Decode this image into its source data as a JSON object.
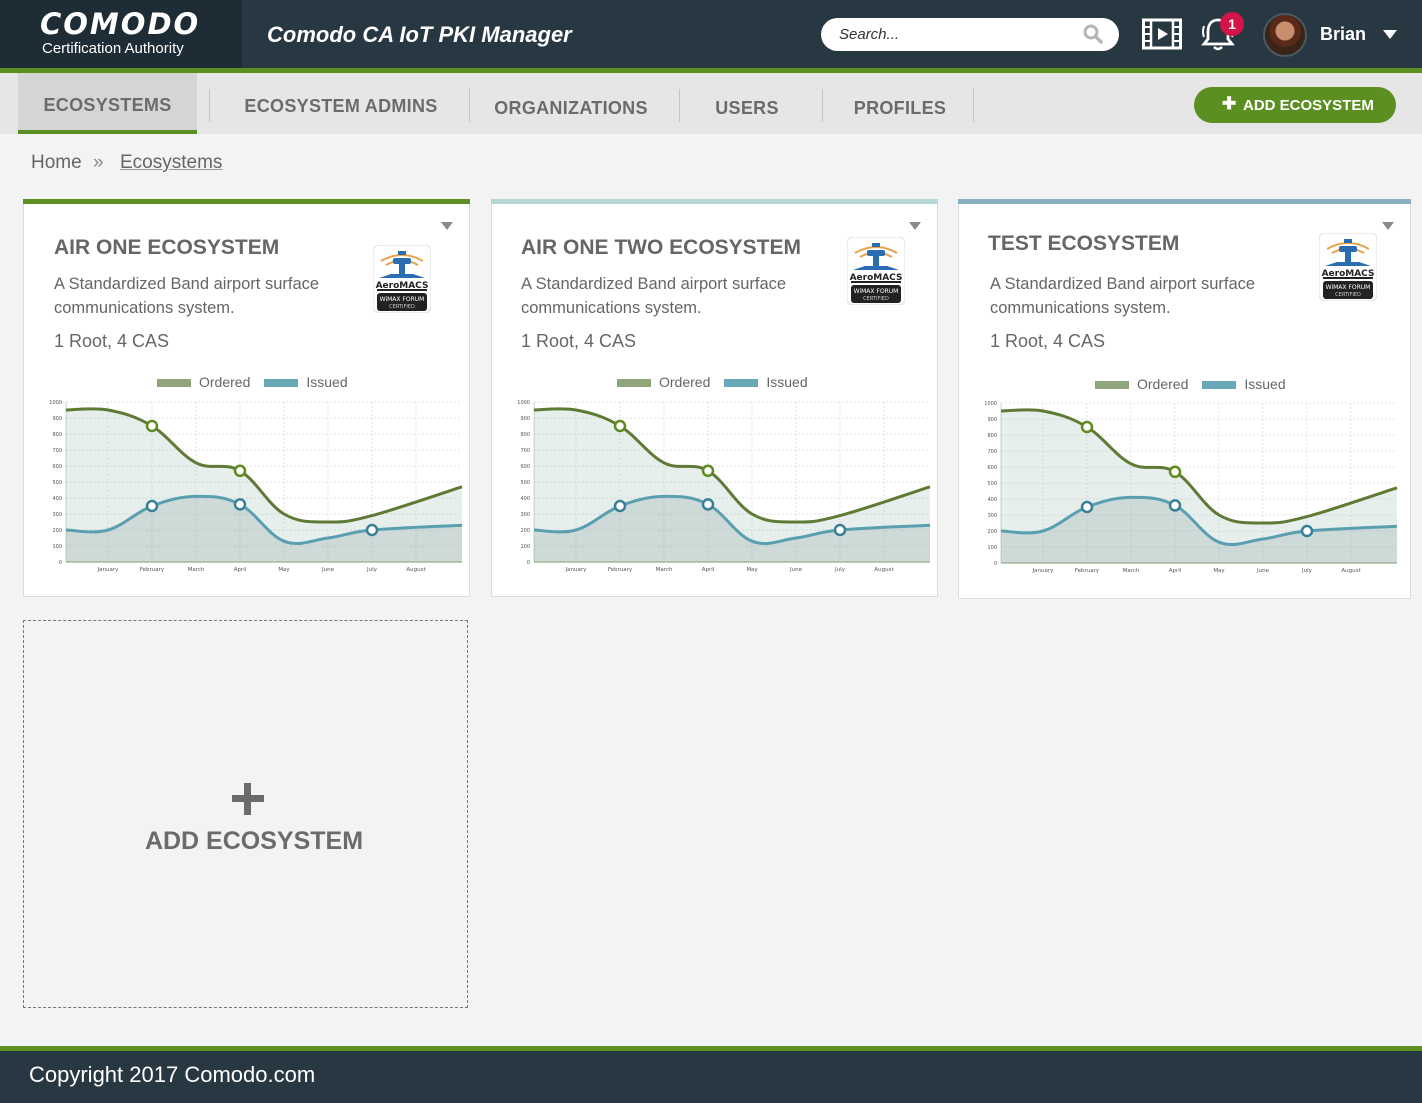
{
  "header": {
    "brand": "COMODO",
    "brand_sub": "Certification Authority",
    "app_title": "Comodo CA IoT PKI Manager",
    "search_placeholder": "Search...",
    "notification_count": "1",
    "user_name": "Brian"
  },
  "nav": {
    "tabs": [
      {
        "label": "ECOSYSTEMS",
        "active": true
      },
      {
        "label": "ECOSYSTEM ADMINS",
        "active": false
      },
      {
        "label": "ORGANIZATIONS",
        "active": false
      },
      {
        "label": "USERS",
        "active": false
      },
      {
        "label": "PROFILES",
        "active": false
      }
    ],
    "add_button": "ADD ECOSYSTEM"
  },
  "breadcrumb": {
    "home": "Home",
    "separator": "»",
    "current": "Ecosystems"
  },
  "cards": [
    {
      "title": "AIR ONE ECOSYSTEM",
      "description": "A Standardized Band airport surface communications system.",
      "stats": "1 Root, 4 CAS",
      "accent": "#5b8f22"
    },
    {
      "title": "AIR ONE TWO ECOSYSTEM",
      "description": "A Standardized Band airport surface communications system.",
      "stats": "1 Root, 4 CAS",
      "accent": "#b6d8d4"
    },
    {
      "title": "TEST ECOSYSTEM",
      "description": "A Standardized Band airport surface communications system.",
      "stats": "1 Root, 4 CAS",
      "accent": "#8aaec3"
    }
  ],
  "badge": {
    "line1": "AeroMACS",
    "line2": "WiMAX FORUM",
    "line3": "CERTIFIED"
  },
  "add_card": {
    "label": "ADD ECOSYSTEM"
  },
  "chart_data": {
    "type": "line",
    "categories": [
      "January",
      "February",
      "March",
      "April",
      "May",
      "June",
      "July",
      "August"
    ],
    "series": [
      {
        "name": "Ordered",
        "color": "#5e7a34",
        "values": [
          950,
          850,
          620,
          570,
          300,
          250,
          290,
          470
        ]
      },
      {
        "name": "Issued",
        "color": "#5a9fb0",
        "values": [
          200,
          350,
          410,
          360,
          130,
          150,
          200,
          230
        ]
      }
    ],
    "yticks": [
      0,
      100,
      200,
      300,
      400,
      500,
      600,
      700,
      800,
      900,
      1000
    ],
    "ylim": [
      0,
      1000
    ],
    "grid": true,
    "legend": "top-center"
  },
  "footer": {
    "copyright": "Copyright 2017 Comodo.com"
  }
}
